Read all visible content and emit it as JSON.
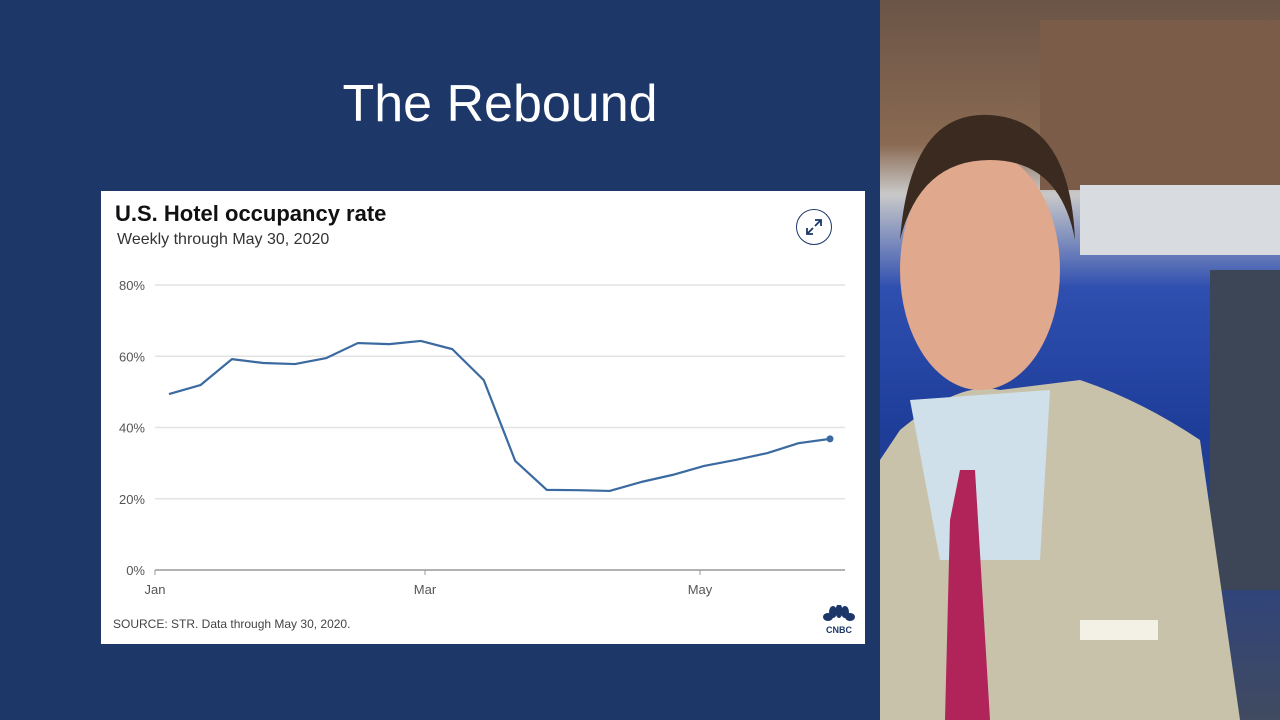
{
  "slide": {
    "title": "The Rebound"
  },
  "chart_data": {
    "type": "line",
    "title": "U.S. Hotel occupancy rate",
    "subtitle": "Weekly through May 30, 2020",
    "source": "SOURCE: STR. Data through May 30, 2020.",
    "brand": "CNBC",
    "xlabel": "",
    "ylabel": "",
    "x_ticks": [
      "Jan",
      "Mar",
      "May"
    ],
    "y_ticks": [
      "0%",
      "20%",
      "40%",
      "60%",
      "80%"
    ],
    "ylim": [
      0,
      80
    ],
    "grid": true,
    "series": [
      {
        "name": "Occupancy rate",
        "unit": "%",
        "values": [
          49.4,
          51.9,
          59.2,
          58.1,
          57.8,
          59.5,
          63.7,
          63.4,
          64.3,
          62.0,
          53.3,
          30.6,
          22.5,
          22.4,
          22.2,
          24.7,
          26.7,
          29.2,
          30.9,
          32.8,
          35.6,
          36.8
        ]
      }
    ],
    "color": "#3a6aa0"
  }
}
